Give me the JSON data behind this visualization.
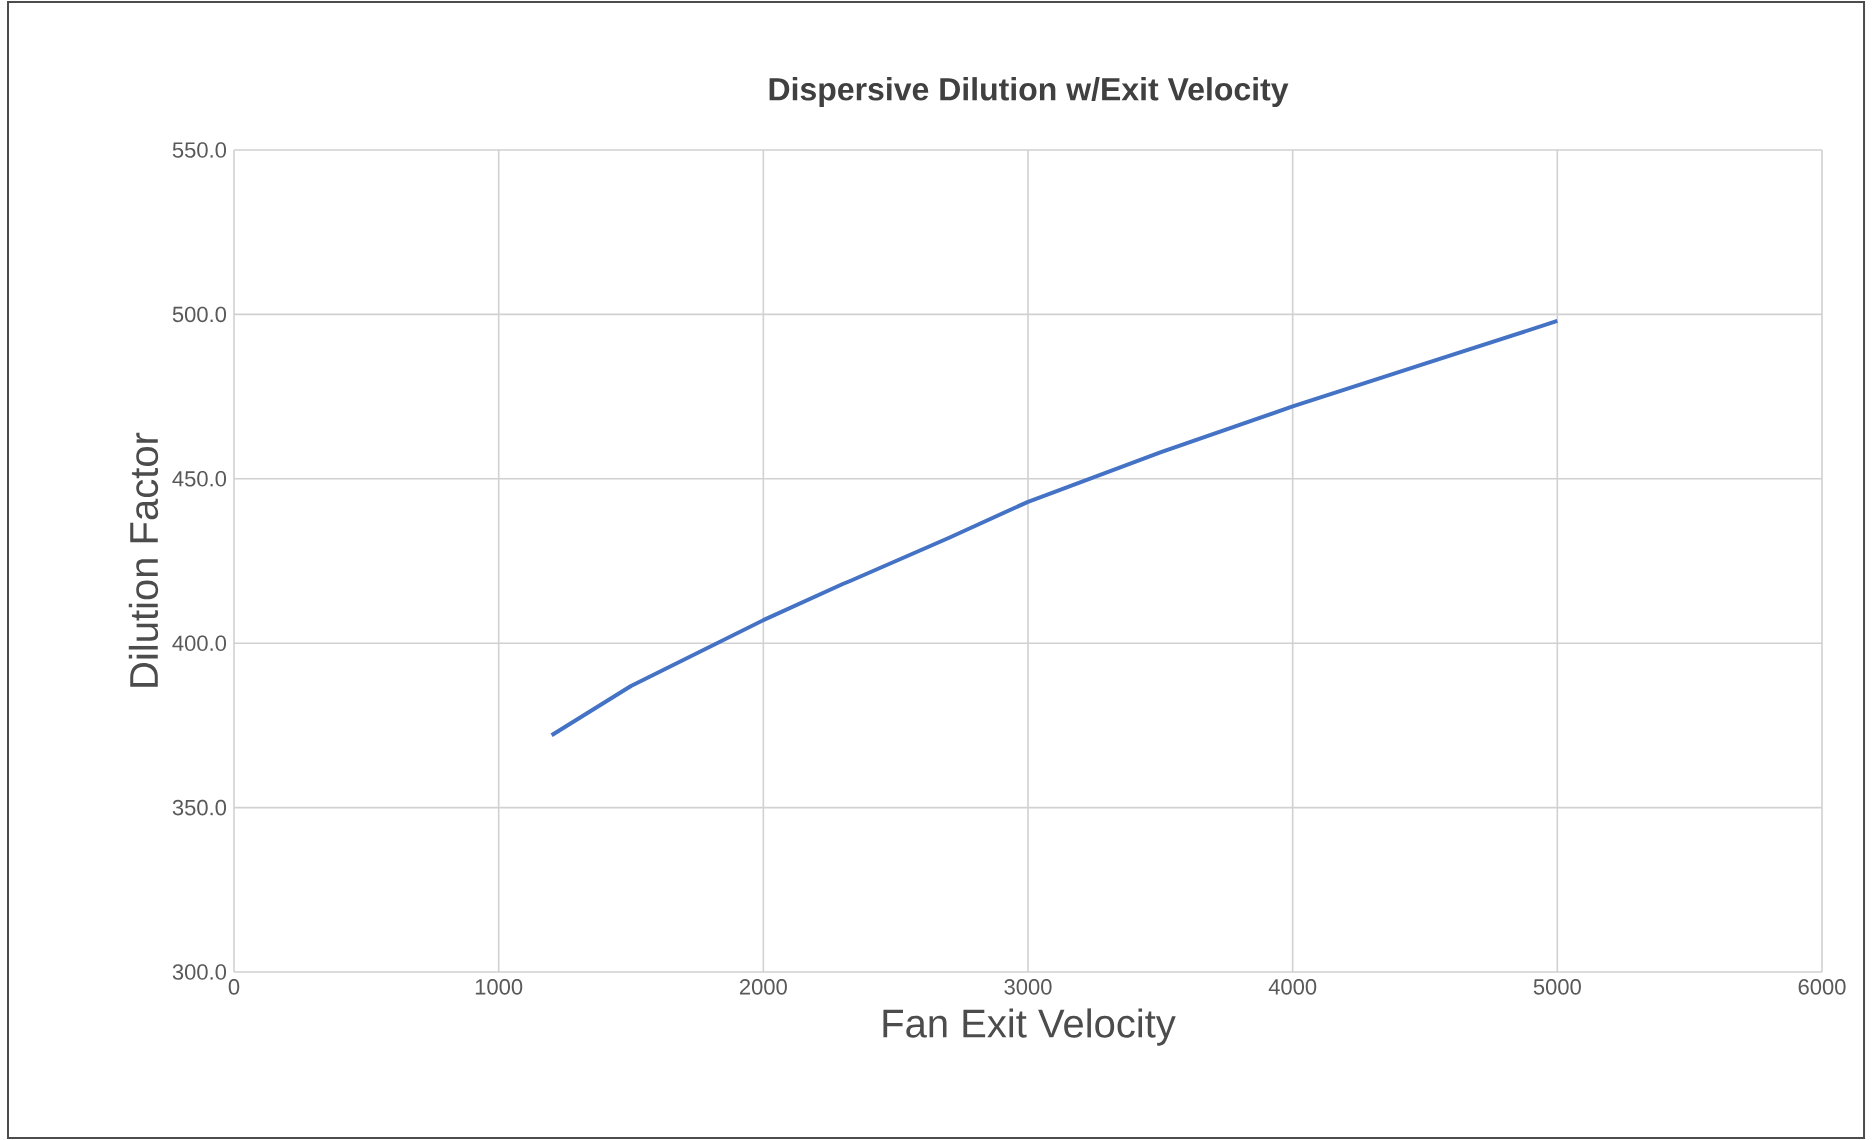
{
  "chart_data": {
    "type": "line",
    "title": "Dispersive Dilution w/Exit Velocity",
    "xlabel": "Fan Exit Velocity",
    "ylabel": "Dilution Factor",
    "series": [
      {
        "color": "#4472c4",
        "x": [
          1200,
          1500,
          2000,
          2300,
          2330,
          2700,
          3000,
          3500,
          4000,
          4500,
          5000
        ],
        "values": [
          372,
          387,
          407,
          418,
          419,
          432,
          443,
          458,
          472,
          485,
          498
        ]
      }
    ],
    "xlim": [
      0,
      6000
    ],
    "xticks": [
      0,
      1000,
      2000,
      3000,
      4000,
      5000,
      6000
    ],
    "ylim": [
      300,
      550
    ],
    "yticks": [
      {
        "value": 300,
        "label": "300.0"
      },
      {
        "value": 350,
        "label": "350.0"
      },
      {
        "value": 400,
        "label": "400.0"
      },
      {
        "value": 450,
        "label": "450.0"
      },
      {
        "value": 500,
        "label": "500.0"
      },
      {
        "value": 550,
        "label": "550.0"
      }
    ],
    "grid": true,
    "marker": "none",
    "line_style": "solid"
  }
}
